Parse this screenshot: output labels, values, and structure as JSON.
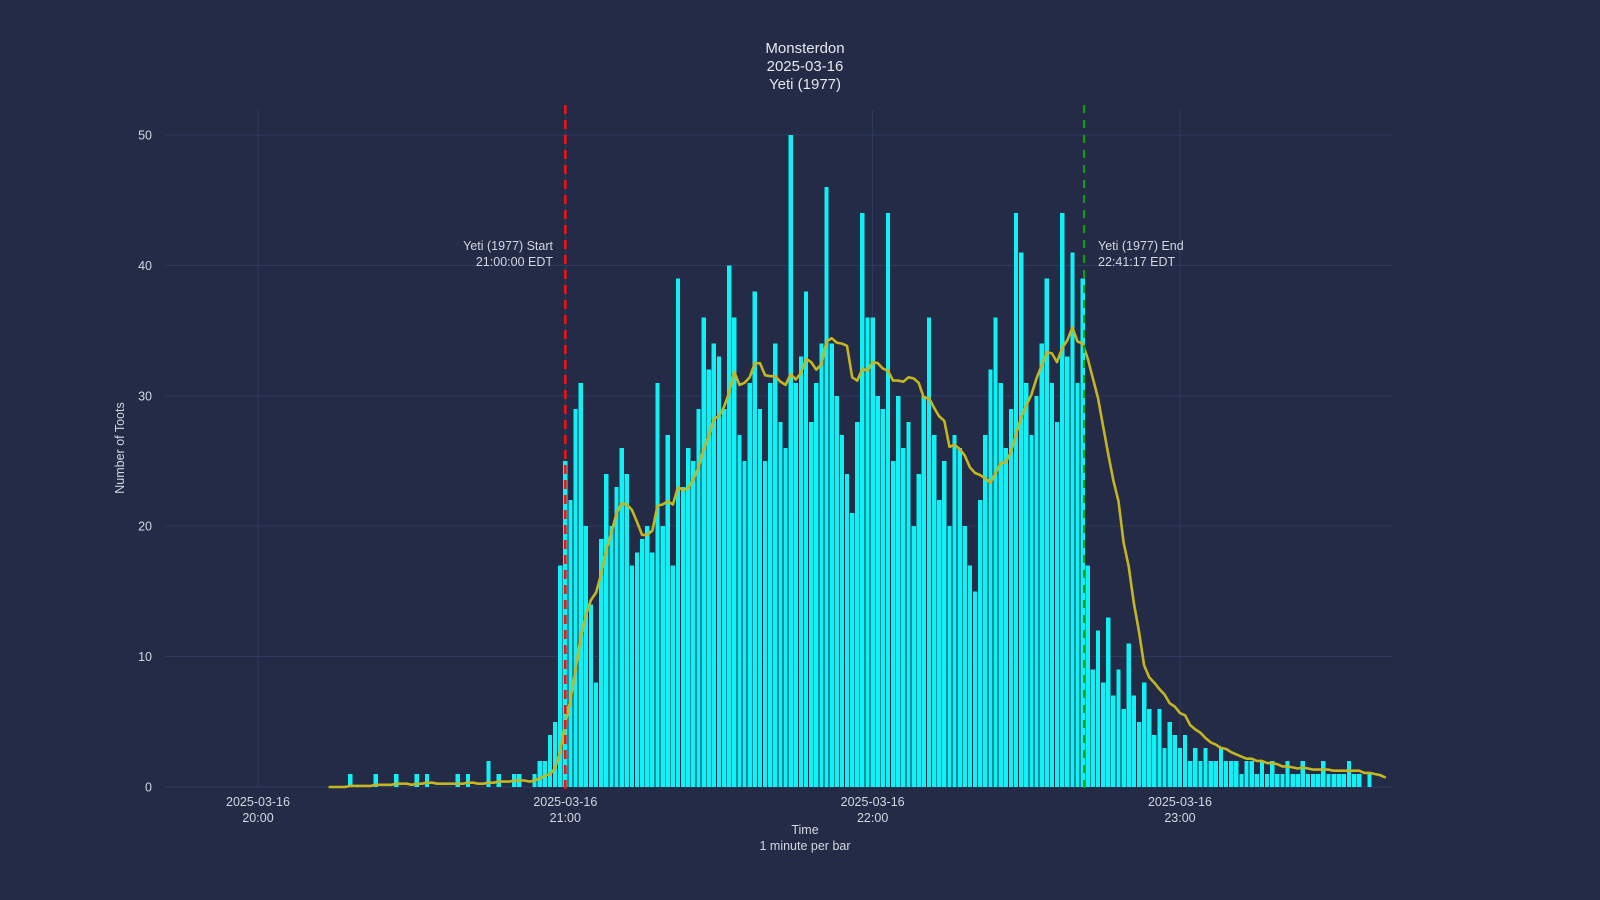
{
  "title": {
    "line1": "Monsterdon",
    "line2": "2025-03-16",
    "line3": "Yeti (1977)"
  },
  "axes": {
    "y_title": "Number of Toots",
    "x_title_line1": "Time",
    "x_title_line2": "1 minute per bar"
  },
  "annotations": {
    "start": {
      "line1": "Yeti (1977) Start",
      "line2": "21:00:00 EDT",
      "time": "21:00:00"
    },
    "end": {
      "line1": "Yeti (1977) End",
      "line2": "22:41:17 EDT",
      "time": "22:41:17"
    }
  },
  "colors": {
    "background": "#232b46",
    "grid": "#2e3a5e",
    "text": "#d3d7e0",
    "title_text": "#e6e8ee",
    "bar": "#0ef2f5",
    "smooth_line": "#c5b621",
    "start_line": "#f31111",
    "end_line": "#0ca10c"
  },
  "chart_data": {
    "type": "bar",
    "title": "Monsterdon 2025-03-16 Yeti (1977)",
    "xlabel": "Time (1 minute per bar)",
    "ylabel": "Number of Toots",
    "date": "2025-03-16",
    "ylim": [
      0,
      52
    ],
    "yticks": [
      0,
      10,
      20,
      30,
      40,
      50
    ],
    "xtick_hours": [
      "20:00",
      "21:00",
      "22:00",
      "23:00"
    ],
    "grid": true,
    "bar_interval_minutes": 1,
    "overlay_line": "trailing moving average of bars",
    "smoothing_window_minutes": 12,
    "event_start": "21:00:00",
    "event_end": "22:41:17",
    "bars": [
      [
        "20:18",
        1
      ],
      [
        "20:23",
        1
      ],
      [
        "20:27",
        1
      ],
      [
        "20:31",
        1
      ],
      [
        "20:33",
        1
      ],
      [
        "20:39",
        1
      ],
      [
        "20:41",
        1
      ],
      [
        "20:45",
        2
      ],
      [
        "20:47",
        1
      ],
      [
        "20:50",
        1
      ],
      [
        "20:51",
        1
      ],
      [
        "20:54",
        1
      ],
      [
        "20:55",
        2
      ],
      [
        "20:56",
        2
      ],
      [
        "20:57",
        4
      ],
      [
        "20:58",
        5
      ],
      [
        "20:59",
        17
      ],
      [
        "21:00",
        25
      ],
      [
        "21:01",
        22
      ],
      [
        "21:02",
        29
      ],
      [
        "21:03",
        31
      ],
      [
        "21:04",
        20
      ],
      [
        "21:05",
        14
      ],
      [
        "21:06",
        8
      ],
      [
        "21:07",
        19
      ],
      [
        "21:08",
        24
      ],
      [
        "21:09",
        20
      ],
      [
        "21:10",
        23
      ],
      [
        "21:11",
        26
      ],
      [
        "21:12",
        24
      ],
      [
        "21:13",
        17
      ],
      [
        "21:14",
        18
      ],
      [
        "21:15",
        19
      ],
      [
        "21:16",
        20
      ],
      [
        "21:17",
        18
      ],
      [
        "21:18",
        31
      ],
      [
        "21:19",
        20
      ],
      [
        "21:20",
        27
      ],
      [
        "21:21",
        17
      ],
      [
        "21:22",
        39
      ],
      [
        "21:23",
        23
      ],
      [
        "21:24",
        26
      ],
      [
        "21:25",
        25
      ],
      [
        "21:26",
        29
      ],
      [
        "21:27",
        36
      ],
      [
        "21:28",
        32
      ],
      [
        "21:29",
        34
      ],
      [
        "21:30",
        33
      ],
      [
        "21:31",
        29
      ],
      [
        "21:32",
        40
      ],
      [
        "21:33",
        36
      ],
      [
        "21:34",
        27
      ],
      [
        "21:35",
        25
      ],
      [
        "21:36",
        31
      ],
      [
        "21:37",
        38
      ],
      [
        "21:38",
        29
      ],
      [
        "21:39",
        25
      ],
      [
        "21:40",
        31
      ],
      [
        "21:41",
        34
      ],
      [
        "21:42",
        28
      ],
      [
        "21:43",
        26
      ],
      [
        "21:44",
        50
      ],
      [
        "21:45",
        31
      ],
      [
        "21:46",
        33
      ],
      [
        "21:47",
        38
      ],
      [
        "21:48",
        28
      ],
      [
        "21:49",
        31
      ],
      [
        "21:50",
        34
      ],
      [
        "21:51",
        46
      ],
      [
        "21:52",
        34
      ],
      [
        "21:53",
        30
      ],
      [
        "21:54",
        27
      ],
      [
        "21:55",
        24
      ],
      [
        "21:56",
        21
      ],
      [
        "21:57",
        28
      ],
      [
        "21:58",
        44
      ],
      [
        "21:59",
        36
      ],
      [
        "22:00",
        36
      ],
      [
        "22:01",
        30
      ],
      [
        "22:02",
        29
      ],
      [
        "22:03",
        44
      ],
      [
        "22:04",
        25
      ],
      [
        "22:05",
        30
      ],
      [
        "22:06",
        26
      ],
      [
        "22:07",
        28
      ],
      [
        "22:08",
        20
      ],
      [
        "22:09",
        24
      ],
      [
        "22:10",
        30
      ],
      [
        "22:11",
        36
      ],
      [
        "22:12",
        27
      ],
      [
        "22:13",
        22
      ],
      [
        "22:14",
        25
      ],
      [
        "22:15",
        20
      ],
      [
        "22:16",
        27
      ],
      [
        "22:17",
        26
      ],
      [
        "22:18",
        20
      ],
      [
        "22:19",
        17
      ],
      [
        "22:20",
        15
      ],
      [
        "22:21",
        22
      ],
      [
        "22:22",
        27
      ],
      [
        "22:23",
        32
      ],
      [
        "22:24",
        36
      ],
      [
        "22:25",
        31
      ],
      [
        "22:26",
        26
      ],
      [
        "22:27",
        29
      ],
      [
        "22:28",
        44
      ],
      [
        "22:29",
        41
      ],
      [
        "22:30",
        31
      ],
      [
        "22:31",
        27
      ],
      [
        "22:32",
        30
      ],
      [
        "22:33",
        34
      ],
      [
        "22:34",
        39
      ],
      [
        "22:35",
        31
      ],
      [
        "22:36",
        28
      ],
      [
        "22:37",
        44
      ],
      [
        "22:38",
        33
      ],
      [
        "22:39",
        41
      ],
      [
        "22:40",
        31
      ],
      [
        "22:41",
        39
      ],
      [
        "22:42",
        17
      ],
      [
        "22:43",
        9
      ],
      [
        "22:44",
        12
      ],
      [
        "22:45",
        8
      ],
      [
        "22:46",
        13
      ],
      [
        "22:47",
        7
      ],
      [
        "22:48",
        9
      ],
      [
        "22:49",
        6
      ],
      [
        "22:50",
        11
      ],
      [
        "22:51",
        7
      ],
      [
        "22:52",
        5
      ],
      [
        "22:53",
        8
      ],
      [
        "22:54",
        6
      ],
      [
        "22:55",
        4
      ],
      [
        "22:56",
        6
      ],
      [
        "22:57",
        3
      ],
      [
        "22:58",
        5
      ],
      [
        "22:59",
        4
      ],
      [
        "23:00",
        3
      ],
      [
        "23:01",
        4
      ],
      [
        "23:02",
        2
      ],
      [
        "23:03",
        3
      ],
      [
        "23:04",
        2
      ],
      [
        "23:05",
        3
      ],
      [
        "23:06",
        2
      ],
      [
        "23:07",
        2
      ],
      [
        "23:08",
        3
      ],
      [
        "23:09",
        2
      ],
      [
        "23:10",
        2
      ],
      [
        "23:11",
        2
      ],
      [
        "23:12",
        1
      ],
      [
        "23:13",
        2
      ],
      [
        "23:14",
        2
      ],
      [
        "23:15",
        1
      ],
      [
        "23:16",
        2
      ],
      [
        "23:17",
        1
      ],
      [
        "23:18",
        2
      ],
      [
        "23:19",
        1
      ],
      [
        "23:20",
        1
      ],
      [
        "23:21",
        2
      ],
      [
        "23:22",
        1
      ],
      [
        "23:23",
        1
      ],
      [
        "23:24",
        2
      ],
      [
        "23:25",
        1
      ],
      [
        "23:26",
        1
      ],
      [
        "23:27",
        1
      ],
      [
        "23:28",
        2
      ],
      [
        "23:29",
        1
      ],
      [
        "23:30",
        1
      ],
      [
        "23:31",
        1
      ],
      [
        "23:32",
        1
      ],
      [
        "23:33",
        2
      ],
      [
        "23:34",
        1
      ],
      [
        "23:35",
        1
      ],
      [
        "23:37",
        1
      ]
    ]
  }
}
